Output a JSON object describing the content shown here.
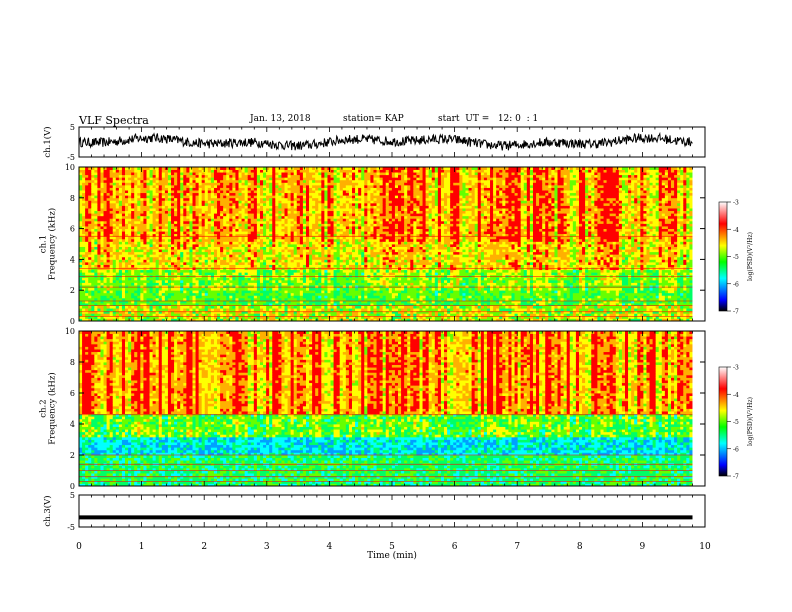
{
  "header": {
    "title": "VLF Spectra",
    "date": "Jan. 13, 2018",
    "station": "station= KAP",
    "start": "start  UT =   12: 0  : 1"
  },
  "chart_data": [
    {
      "type": "line",
      "name": "ch1-waveform",
      "ylabel": "ch.1(V)",
      "ylim": [
        -5,
        5
      ],
      "yticks": [
        "5",
        "-5"
      ],
      "xlim": [
        0,
        10
      ],
      "baseline": 0,
      "color": "#000000"
    },
    {
      "type": "heatmap",
      "name": "ch1-spectrogram",
      "ylabel": "ch.1\nFrequency (kHz)",
      "ylim": [
        0,
        10
      ],
      "yticks": [
        "0",
        "2",
        "4",
        "6",
        "8",
        "10"
      ],
      "xlim": [
        0,
        9.8
      ]
    },
    {
      "type": "heatmap",
      "name": "ch2-spectrogram",
      "ylabel": "ch.2\nFrequency (kHz)",
      "ylim": [
        0,
        10
      ],
      "yticks": [
        "0",
        "2",
        "4",
        "6",
        "8",
        "10"
      ],
      "xlim": [
        0,
        9.8
      ]
    },
    {
      "type": "line",
      "name": "ch3-waveform",
      "ylabel": "ch.3(V)",
      "ylim": [
        -5,
        5
      ],
      "yticks": [
        "5",
        "-5"
      ],
      "xlim": [
        0,
        10
      ],
      "values": [
        {
          "x": 0,
          "y": -2
        },
        {
          "x": 9.8,
          "y": -2
        }
      ],
      "color": "#000000"
    }
  ],
  "x_axis": {
    "label": "Time (min)",
    "ticks": [
      "0",
      "1",
      "2",
      "3",
      "4",
      "5",
      "6",
      "7",
      "8",
      "9",
      "10"
    ],
    "range": [
      0,
      10
    ]
  },
  "colorbar": {
    "label": "log(PSD)(V²/Hz)",
    "range": [
      -7,
      -3
    ],
    "ticks": [
      "-3",
      "-4",
      "-5",
      "-6",
      "-7"
    ],
    "colors": [
      "#000000",
      "#0000ff",
      "#00ffff",
      "#00ff00",
      "#ffff00",
      "#ff0000",
      "#ffffff"
    ]
  }
}
